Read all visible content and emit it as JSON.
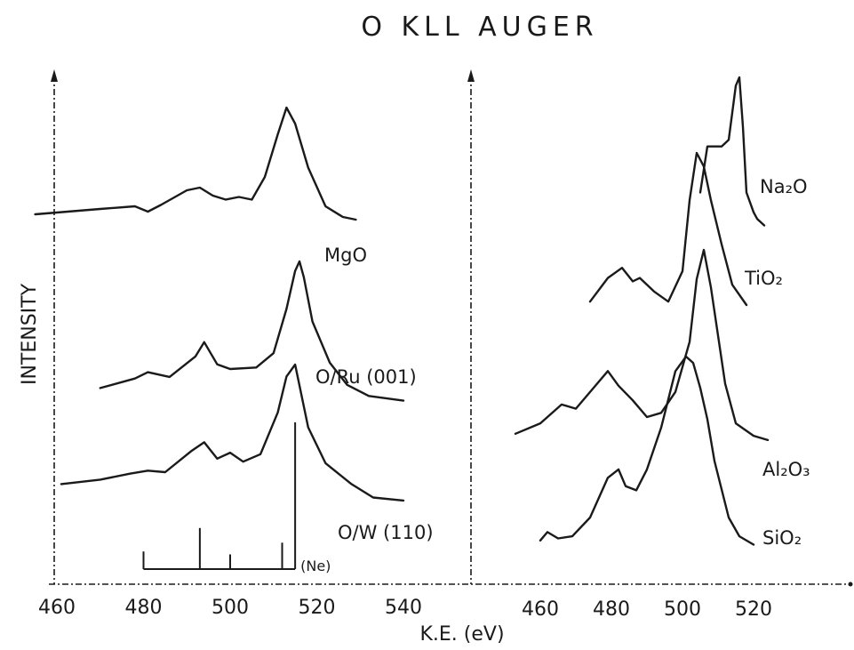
{
  "chart_data": {
    "type": "line",
    "title": "O KLL AUGER",
    "ylabel": "INTENSITY",
    "xlabel": "K.E. (eV)",
    "grid": false,
    "panels": [
      {
        "xticks": [
          "460",
          "480",
          "500",
          "520",
          "540"
        ],
        "xlim": [
          455,
          545
        ],
        "series": [
          {
            "name": "MgO",
            "x": [
              455,
              470,
              478,
              481,
              484,
              490,
              493,
              496,
              499,
              502,
              505,
              508,
              511,
              513,
              515,
              518,
              522,
              526,
              529
            ],
            "y": [
              0.2,
              0.24,
              0.26,
              0.22,
              0.27,
              0.38,
              0.4,
              0.34,
              0.31,
              0.33,
              0.31,
              0.48,
              0.8,
              1.0,
              0.88,
              0.55,
              0.26,
              0.18,
              0.16
            ]
          },
          {
            "name": "O/Ru (001)",
            "x": [
              470,
              478,
              481,
              486,
              492,
              494,
              497,
              500,
              506,
              510,
              513,
              515,
              516,
              517,
              519,
              523,
              527,
              532,
              540
            ],
            "y": [
              0.2,
              0.26,
              0.3,
              0.27,
              0.4,
              0.49,
              0.35,
              0.32,
              0.33,
              0.42,
              0.7,
              0.94,
              1.0,
              0.9,
              0.62,
              0.36,
              0.22,
              0.15,
              0.12
            ]
          },
          {
            "name": "O/W (110)",
            "x": [
              461,
              470,
              477,
              481,
              485,
              491,
              494,
              497,
              500,
              503,
              507,
              511,
              513,
              515,
              518,
              522,
              528,
              533,
              540
            ],
            "y": [
              0.2,
              0.23,
              0.27,
              0.29,
              0.28,
              0.42,
              0.48,
              0.37,
              0.41,
              0.35,
              0.4,
              0.68,
              0.92,
              1.0,
              0.58,
              0.34,
              0.2,
              0.11,
              0.09
            ]
          }
        ],
        "reference_lines": {
          "name": "(Ne)",
          "x": [
            480,
            493,
            500,
            512,
            515
          ],
          "heights": [
            0.12,
            0.28,
            0.1,
            0.18,
            1.0
          ]
        }
      },
      {
        "xticks": [
          "460",
          "480",
          "500",
          "520"
        ],
        "xlim": [
          453,
          540
        ],
        "series": [
          {
            "name": "Na₂O",
            "x": [
              505,
              507,
              511,
              513,
              515,
              516,
              517,
              518,
              520,
              521,
              523
            ],
            "y": [
              0.3,
              0.58,
              0.58,
              0.62,
              0.95,
              1.0,
              0.7,
              0.3,
              0.18,
              0.14,
              0.1
            ]
          },
          {
            "name": "TiO₂",
            "x": [
              474,
              479,
              483,
              486,
              488,
              492,
              496,
              500,
              502,
              504,
              506,
              508,
              511,
              514,
              518
            ],
            "y": [
              0.12,
              0.26,
              0.32,
              0.24,
              0.26,
              0.18,
              0.12,
              0.3,
              0.72,
              1.0,
              0.92,
              0.72,
              0.46,
              0.22,
              0.1
            ]
          },
          {
            "name": "Al₂O₃",
            "x": [
              453,
              460,
              466,
              470,
              475,
              479,
              482,
              486,
              490,
              494,
              498,
              502,
              504,
              506,
              508,
              512,
              515,
              520,
              524
            ],
            "y": [
              0.12,
              0.17,
              0.26,
              0.24,
              0.34,
              0.42,
              0.35,
              0.28,
              0.2,
              0.22,
              0.32,
              0.56,
              0.86,
              1.0,
              0.82,
              0.36,
              0.17,
              0.11,
              0.09
            ]
          },
          {
            "name": "SiO₂",
            "x": [
              460,
              462,
              465,
              469,
              474,
              479,
              482,
              484,
              487,
              490,
              494,
              498,
              501,
              503,
              505,
              507,
              509,
              513,
              516,
              520
            ],
            "y": [
              0.12,
              0.16,
              0.13,
              0.14,
              0.23,
              0.42,
              0.46,
              0.38,
              0.36,
              0.46,
              0.66,
              0.93,
              1.0,
              0.97,
              0.85,
              0.7,
              0.5,
              0.23,
              0.14,
              0.1
            ]
          }
        ]
      }
    ]
  }
}
